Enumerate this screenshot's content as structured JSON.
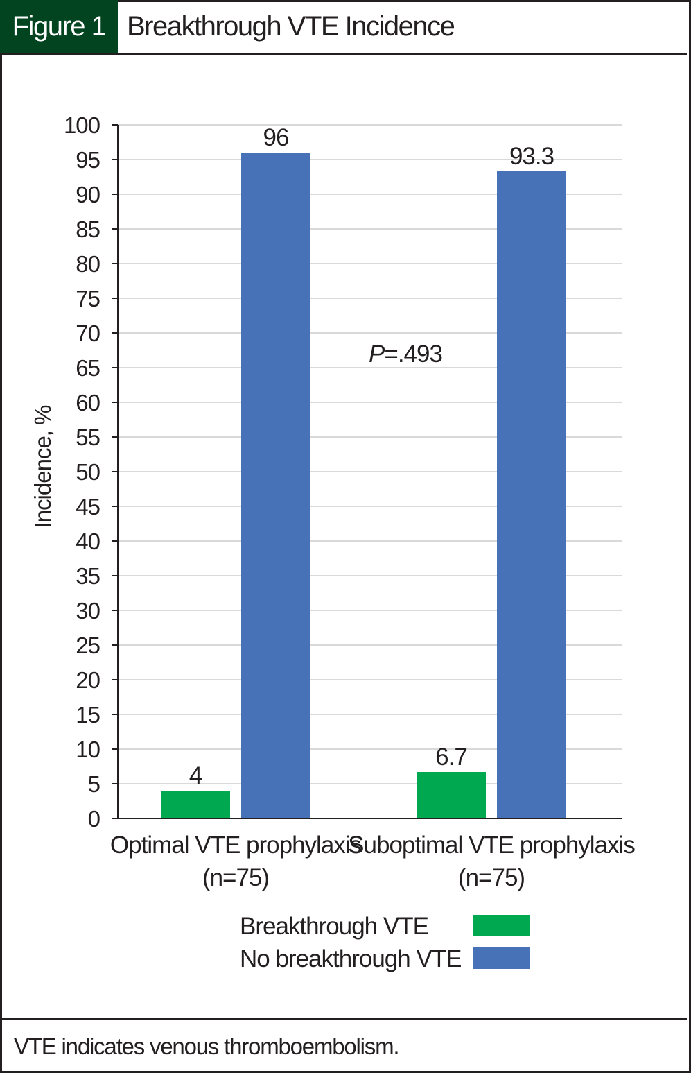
{
  "header": {
    "figure_label": "Figure 1",
    "title": "Breakthrough VTE Incidence"
  },
  "footnote": "VTE indicates venous thromboembolism.",
  "chart_data": {
    "type": "bar",
    "title": "Breakthrough VTE Incidence",
    "ylabel": "Incidence, %",
    "xlabel": "",
    "ylim": [
      0,
      100
    ],
    "yticks": [
      0,
      5,
      10,
      15,
      20,
      25,
      30,
      35,
      40,
      45,
      50,
      55,
      60,
      65,
      70,
      75,
      80,
      85,
      90,
      95,
      100
    ],
    "grid": true,
    "categories": [
      [
        "Optimal VTE prophylaxis",
        "(n=75)"
      ],
      [
        "Suboptimal VTE prophylaxis",
        "(n=75)"
      ]
    ],
    "series": [
      {
        "name": "Breakthrough VTE",
        "color": "#00a94f",
        "values": [
          4,
          6.7
        ],
        "labels": [
          "4",
          "6.7"
        ]
      },
      {
        "name": "No breakthrough VTE",
        "color": "#4872b8",
        "values": [
          96,
          93.3
        ],
        "labels": [
          "96",
          "93.3"
        ]
      }
    ],
    "annotation": {
      "italic": "P",
      "text": "=.493"
    },
    "legend_position": "bottom-center"
  }
}
